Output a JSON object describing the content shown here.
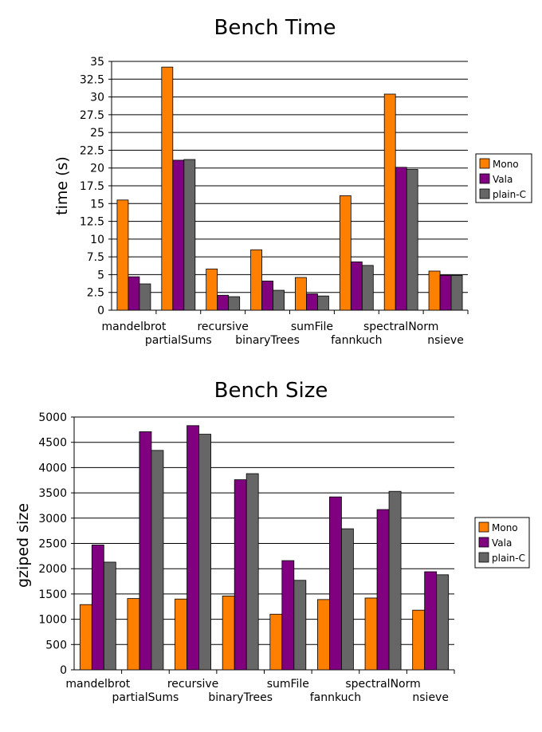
{
  "colors": {
    "Mono": "#ff7f00",
    "Vala": "#800080",
    "plain-C": "#666666"
  },
  "chart_data": [
    {
      "type": "bar",
      "title": "Bench Time",
      "xlabel": "",
      "ylabel": "time (s)",
      "ylim": [
        0,
        35
      ],
      "yticks": [
        "0",
        "2.5",
        "5",
        "7.5",
        "10",
        "12.5",
        "15",
        "17.5",
        "20",
        "22.5",
        "25",
        "27.5",
        "30",
        "32.5",
        "35"
      ],
      "grid": true,
      "legend_position": "right",
      "categories": [
        "mandelbrot",
        "partialSums",
        "recursive",
        "binaryTrees",
        "sumFile",
        "fannkuch",
        "spectralNorm",
        "nsieve"
      ],
      "series": [
        {
          "name": "Mono",
          "values": [
            15.5,
            34.2,
            5.8,
            8.5,
            4.6,
            16.1,
            30.4,
            5.5
          ]
        },
        {
          "name": "Vala",
          "values": [
            4.7,
            21.1,
            2.1,
            4.1,
            2.3,
            6.8,
            20.1,
            4.9
          ]
        },
        {
          "name": "plain-C",
          "values": [
            3.7,
            21.2,
            1.9,
            2.8,
            2.0,
            6.3,
            19.8,
            4.9
          ]
        }
      ]
    },
    {
      "type": "bar",
      "title": "Bench Size",
      "xlabel": "",
      "ylabel": "gziped size",
      "ylim": [
        0,
        5000
      ],
      "yticks": [
        "0",
        "500",
        "1000",
        "1500",
        "2000",
        "2500",
        "3000",
        "3500",
        "4000",
        "4500",
        "5000"
      ],
      "grid": true,
      "legend_position": "right",
      "categories": [
        "mandelbrot",
        "partialSums",
        "recursive",
        "binaryTrees",
        "sumFile",
        "fannkuch",
        "spectralNorm",
        "nsieve"
      ],
      "series": [
        {
          "name": "Mono",
          "values": [
            1290,
            1410,
            1400,
            1460,
            1100,
            1390,
            1420,
            1180
          ]
        },
        {
          "name": "Vala",
          "values": [
            2470,
            4710,
            4830,
            3760,
            2160,
            3420,
            3170,
            1940
          ]
        },
        {
          "name": "plain-C",
          "values": [
            2130,
            4340,
            4660,
            3880,
            1770,
            2790,
            3530,
            1880
          ]
        }
      ]
    }
  ]
}
